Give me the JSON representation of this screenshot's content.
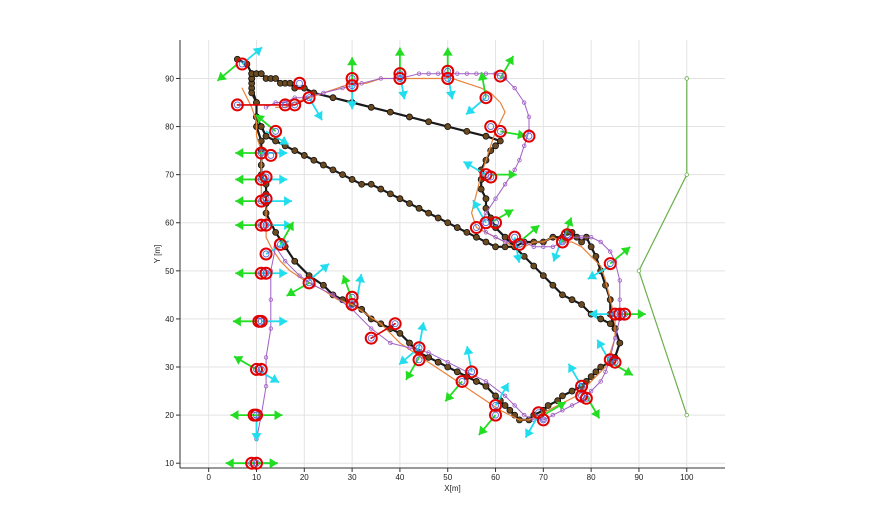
{
  "chart_data": {
    "type": "line",
    "title": "",
    "xlabel": "X[m]",
    "ylabel": "Y [m]",
    "xlim": [
      -6,
      108
    ],
    "ylim": [
      9,
      98
    ],
    "xticks": [
      0,
      10,
      20,
      30,
      40,
      50,
      60,
      70,
      80,
      90,
      100
    ],
    "yticks": [
      10,
      20,
      30,
      40,
      50,
      60,
      70,
      80,
      90
    ],
    "grid": true,
    "legend": "none",
    "colors": {
      "path_black": "#1a1a1a",
      "path_orange": "#e8833a",
      "path_purple": "#a05fc4",
      "path_red": "#e00000",
      "path_green": "#6ab04c",
      "node_fill": "#6b4a1f",
      "arrow_green": "#22dd22",
      "arrow_cyan": "#22ddee",
      "marker_red": "#e00000",
      "marker_blue": "#5a6bd6"
    },
    "series": [
      {
        "style": "black",
        "x": [
          6,
          8,
          9,
          9,
          10,
          10,
          10,
          11,
          11,
          11,
          11,
          12,
          12,
          12,
          12,
          14,
          16,
          18,
          21,
          24,
          26,
          28,
          30,
          32,
          34,
          36,
          38,
          40,
          42,
          44,
          46,
          48,
          50,
          52,
          54,
          56,
          58,
          60,
          61,
          62,
          63,
          64,
          65,
          67,
          68,
          70,
          71,
          73,
          74,
          76,
          78,
          79,
          80,
          81,
          82,
          84,
          85,
          86,
          85,
          84,
          84,
          83,
          82,
          81,
          80,
          79,
          78,
          77,
          76,
          75,
          74,
          72,
          70,
          68,
          66,
          64,
          62,
          60,
          58,
          56,
          54,
          52,
          50,
          48,
          46,
          44,
          42,
          40,
          38,
          36,
          34,
          32,
          30,
          28,
          26,
          24,
          22,
          20,
          18,
          16,
          14,
          12,
          11,
          10,
          10,
          9,
          9,
          9,
          9,
          9,
          9,
          10,
          11,
          12,
          13,
          14,
          15,
          16,
          17,
          18,
          20,
          22,
          26,
          30,
          34,
          38,
          42,
          46,
          50,
          54,
          58,
          61,
          60,
          59,
          58,
          57,
          57,
          57,
          58,
          58,
          59,
          60,
          62,
          64,
          66,
          68,
          70,
          72,
          74,
          76,
          78,
          80,
          82,
          84,
          85
        ],
        "y": [
          94,
          93,
          91,
          88,
          85,
          82,
          80,
          77,
          75,
          72,
          70,
          68,
          66,
          64,
          62,
          58,
          55,
          52,
          49,
          47,
          45,
          44,
          43,
          42,
          40,
          39,
          38,
          37,
          35,
          33,
          32,
          31,
          30,
          29,
          28,
          27,
          26,
          24,
          23,
          22,
          21,
          20,
          19,
          19,
          20,
          21,
          22,
          23,
          24,
          25,
          26,
          27,
          28,
          29,
          30,
          31,
          32,
          35,
          38,
          41,
          44,
          47,
          50,
          53,
          55,
          57,
          56,
          57,
          58,
          58,
          57,
          57,
          56,
          56,
          56,
          55,
          55,
          55,
          56,
          57,
          58,
          59,
          60,
          61,
          62,
          63,
          64,
          65,
          66,
          67,
          68,
          68,
          69,
          70,
          71,
          72,
          73,
          74,
          75,
          76,
          77,
          78,
          80,
          82,
          85,
          87,
          89,
          90,
          90,
          90,
          91,
          91,
          91,
          90,
          90,
          90,
          89,
          89,
          89,
          88,
          88,
          87,
          86,
          85,
          84,
          83,
          82,
          81,
          80,
          79,
          78,
          77,
          76,
          75,
          73,
          71,
          69,
          67,
          65,
          63,
          61,
          59,
          57,
          55,
          53,
          51,
          49,
          47,
          45,
          44,
          43,
          41,
          40,
          39,
          38
        ],
        "markers": true
      },
      {
        "style": "orange",
        "x": [
          7,
          8,
          9,
          10,
          10,
          11,
          11,
          11,
          11,
          12,
          12,
          12,
          13,
          15,
          17,
          20,
          24,
          27,
          30,
          33,
          36,
          38,
          40,
          43,
          46,
          49,
          52,
          55,
          58,
          61,
          63,
          65,
          67,
          69,
          71,
          73,
          75,
          77,
          79,
          81,
          83,
          84,
          85,
          85,
          84,
          83,
          82,
          80,
          78,
          76,
          74,
          72,
          70,
          68,
          66,
          64,
          62,
          60,
          58,
          56,
          55,
          56,
          57,
          58,
          59,
          60,
          61,
          62,
          61,
          59,
          57,
          54,
          51,
          48,
          45,
          42,
          39,
          36,
          33,
          30,
          27,
          24,
          21,
          18,
          16,
          14
        ],
        "y": [
          88,
          86,
          84,
          81,
          78,
          75,
          72,
          69,
          66,
          63,
          60,
          57,
          55,
          52,
          50,
          48,
          46,
          44,
          43,
          41,
          39,
          37,
          35,
          33,
          31,
          29,
          27,
          25,
          23,
          21,
          20,
          19,
          19,
          20,
          21,
          22,
          23,
          24,
          26,
          28,
          30,
          33,
          36,
          40,
          44,
          48,
          51,
          53,
          55,
          56,
          56,
          57,
          56,
          56,
          55,
          55,
          56,
          57,
          58,
          59,
          62,
          66,
          70,
          73,
          76,
          79,
          81,
          83,
          85,
          87,
          88,
          89,
          90,
          90,
          90,
          90,
          90,
          90,
          89,
          89,
          88,
          87,
          86,
          85,
          84,
          84
        ]
      },
      {
        "style": "purple",
        "x": [
          10,
          11,
          12,
          12,
          13,
          13,
          13,
          14,
          16,
          19,
          22,
          26,
          30,
          34,
          38,
          42,
          46,
          50,
          54,
          58,
          62,
          64,
          66,
          68,
          70,
          72,
          74,
          76,
          78,
          80,
          82,
          83,
          84,
          85,
          86,
          86,
          86,
          85,
          84,
          82,
          80,
          78,
          76,
          74,
          72,
          70,
          68,
          66,
          64,
          62,
          60,
          58,
          57,
          58,
          60,
          62,
          64,
          65,
          66,
          67,
          67,
          66,
          64,
          62,
          60,
          58,
          56,
          54,
          52,
          50,
          48,
          46,
          44,
          40,
          36,
          32,
          28,
          24,
          20,
          18,
          16,
          14,
          12
        ],
        "y": [
          15,
          20,
          26,
          32,
          38,
          44,
          50,
          55,
          52,
          49,
          47,
          45,
          42,
          38,
          35,
          34,
          33,
          31,
          29,
          27,
          24,
          22,
          20,
          19,
          19,
          20,
          21,
          22,
          23,
          25,
          27,
          29,
          32,
          36,
          40,
          44,
          48,
          52,
          54,
          56,
          57,
          57,
          57,
          56,
          55,
          55,
          55,
          56,
          56,
          56,
          57,
          58,
          60,
          62,
          65,
          68,
          71,
          73,
          76,
          79,
          82,
          85,
          88,
          90,
          91,
          91,
          91,
          91,
          91,
          91,
          91,
          91,
          91,
          90,
          90,
          89,
          88,
          87,
          86,
          86,
          85,
          85,
          84
        ]
      },
      {
        "style": "red",
        "x": [
          6,
          14,
          16,
          18,
          21
        ],
        "y": [
          84.5,
          84.5,
          84.5,
          84.5,
          86
        ]
      },
      {
        "style": "red",
        "x": [
          34,
          39
        ],
        "y": [
          36,
          39
        ]
      },
      {
        "style": "green",
        "x": [
          100,
          100,
          90,
          100
        ],
        "y": [
          90,
          70,
          50,
          20
        ]
      }
    ],
    "pose_markers": [
      [
        7,
        93
      ],
      [
        6,
        84.5
      ],
      [
        19,
        89
      ],
      [
        21,
        86
      ],
      [
        16,
        84.5
      ],
      [
        18,
        84.5
      ],
      [
        30,
        90
      ],
      [
        30,
        88.5
      ],
      [
        40,
        91
      ],
      [
        40,
        90
      ],
      [
        50,
        91.5
      ],
      [
        50,
        90
      ],
      [
        58,
        86
      ],
      [
        61,
        90.5
      ],
      [
        59,
        80
      ],
      [
        61,
        79
      ],
      [
        67,
        78
      ],
      [
        14,
        79
      ],
      [
        11,
        74.5
      ],
      [
        13,
        74
      ],
      [
        11,
        69
      ],
      [
        12,
        69.5
      ],
      [
        11,
        64.5
      ],
      [
        12,
        65
      ],
      [
        11,
        59.5
      ],
      [
        12,
        59.5
      ],
      [
        12,
        53.5
      ],
      [
        15,
        55.5
      ],
      [
        11,
        49.5
      ],
      [
        12,
        49.5
      ],
      [
        21,
        47.5
      ],
      [
        30,
        44.5
      ],
      [
        30,
        43
      ],
      [
        10.5,
        39.5
      ],
      [
        11,
        39.5
      ],
      [
        34,
        36
      ],
      [
        39,
        39
      ],
      [
        44,
        34
      ],
      [
        44,
        31.5
      ],
      [
        10,
        29.5
      ],
      [
        11,
        29.5
      ],
      [
        53,
        27
      ],
      [
        55,
        29
      ],
      [
        58,
        70
      ],
      [
        59,
        69.5
      ],
      [
        58,
        60
      ],
      [
        60,
        60
      ],
      [
        56,
        59
      ],
      [
        64,
        57
      ],
      [
        65,
        55.5
      ],
      [
        74,
        56
      ],
      [
        75,
        57.5
      ],
      [
        84,
        51.5
      ],
      [
        85,
        41
      ],
      [
        86,
        41
      ],
      [
        87,
        41
      ],
      [
        84,
        31.5
      ],
      [
        85,
        31
      ],
      [
        78,
        26
      ],
      [
        78,
        24
      ],
      [
        79,
        23.5
      ],
      [
        60,
        22
      ],
      [
        60,
        20
      ],
      [
        69,
        20.5
      ],
      [
        70,
        19
      ],
      [
        9.5,
        20
      ],
      [
        10,
        20
      ],
      [
        9,
        10
      ],
      [
        10,
        10
      ]
    ],
    "orientation_arrows": {
      "green": [
        [
          6,
          93,
          220
        ],
        [
          10,
          20,
          0
        ],
        [
          10,
          20,
          180
        ],
        [
          9,
          10,
          0
        ],
        [
          9,
          10,
          180
        ],
        [
          11,
          74.5,
          180
        ],
        [
          11,
          69,
          180
        ],
        [
          11,
          64.5,
          180
        ],
        [
          11,
          59.5,
          180
        ],
        [
          11,
          49.5,
          180
        ],
        [
          10.5,
          39.5,
          180
        ],
        [
          10,
          29.5,
          150
        ],
        [
          30,
          89,
          90
        ],
        [
          40,
          91,
          90
        ],
        [
          50,
          91,
          90
        ],
        [
          61,
          90,
          60
        ],
        [
          58,
          86,
          100
        ],
        [
          14,
          79,
          140
        ],
        [
          15,
          55.5,
          60
        ],
        [
          21,
          47.5,
          210
        ],
        [
          30,
          44,
          110
        ],
        [
          44,
          32,
          240
        ],
        [
          53,
          27,
          230
        ],
        [
          60,
          20,
          230
        ],
        [
          70,
          20,
          30
        ],
        [
          74,
          56,
          70
        ],
        [
          84,
          51.5,
          40
        ],
        [
          86,
          41,
          0
        ],
        [
          84,
          31,
          330
        ],
        [
          79,
          24,
          300
        ],
        [
          59,
          60,
          30
        ],
        [
          65,
          56,
          40
        ],
        [
          59,
          70,
          0
        ],
        [
          61,
          79,
          350
        ]
      ],
      "cyan": [
        [
          7,
          93,
          40
        ],
        [
          11,
          74.5,
          0
        ],
        [
          11,
          69,
          0
        ],
        [
          12,
          64.5,
          0
        ],
        [
          12,
          59.5,
          0
        ],
        [
          12,
          53.5,
          30
        ],
        [
          11,
          49.5,
          0
        ],
        [
          11,
          39.5,
          0
        ],
        [
          10,
          29.5,
          330
        ],
        [
          10,
          20,
          270
        ],
        [
          9,
          10,
          0
        ],
        [
          21,
          86,
          300
        ],
        [
          30,
          89,
          270
        ],
        [
          40,
          91,
          280
        ],
        [
          50,
          91,
          280
        ],
        [
          58,
          86,
          220
        ],
        [
          12,
          79,
          330
        ],
        [
          31,
          44,
          80
        ],
        [
          21,
          48,
          40
        ],
        [
          44,
          34,
          80
        ],
        [
          44,
          34,
          220
        ],
        [
          55,
          29,
          100
        ],
        [
          60,
          22,
          60
        ],
        [
          69,
          20,
          240
        ],
        [
          64,
          57,
          280
        ],
        [
          74,
          57,
          250
        ],
        [
          84,
          51,
          210
        ],
        [
          85,
          41,
          180
        ],
        [
          84,
          31,
          120
        ],
        [
          78,
          26,
          120
        ],
        [
          58,
          70,
          150
        ],
        [
          58,
          60,
          120
        ]
      ]
    }
  }
}
